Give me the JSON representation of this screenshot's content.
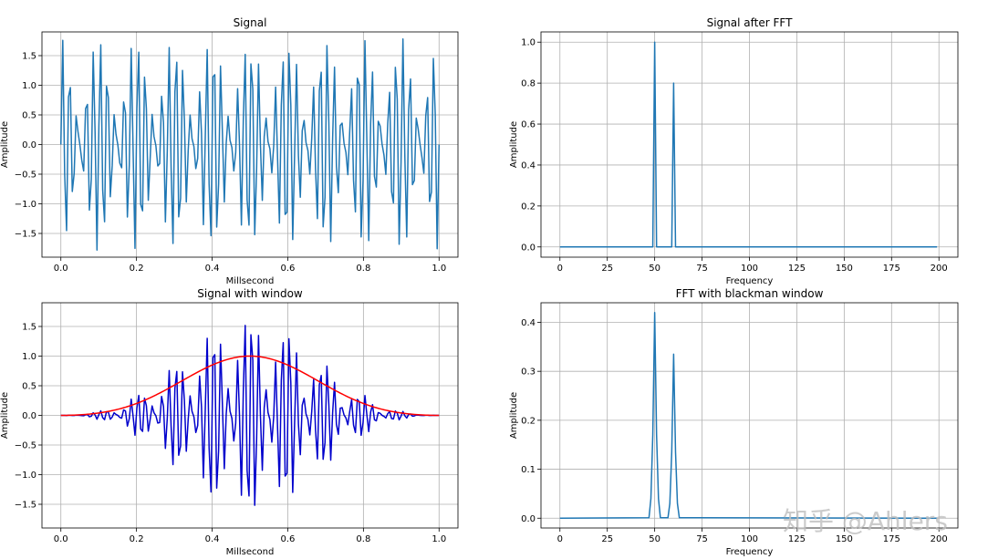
{
  "watermark": "知乎 @Ahlers",
  "chart_data": [
    {
      "id": "signal",
      "type": "line",
      "title": "Signal",
      "xlabel": "Millsecond",
      "ylabel": "Amplitude",
      "xlim": [
        -0.05,
        1.05
      ],
      "ylim": [
        -1.9,
        1.9
      ],
      "xticks": [
        0.0,
        0.2,
        0.4,
        0.6,
        0.8,
        1.0
      ],
      "xtick_labels": [
        "0.0",
        "0.2",
        "0.4",
        "0.6",
        "0.8",
        "1.0"
      ],
      "yticks": [
        -1.5,
        -1.0,
        -0.5,
        0.0,
        0.5,
        1.0,
        1.5
      ],
      "ytick_labels": [
        "−1.5",
        "−1.0",
        "−0.5",
        "0.0",
        "0.5",
        "1.0",
        "1.5"
      ],
      "grid": true,
      "series": [
        {
          "color": "#1f77b4",
          "formula": "y = sin(2*pi*50*t) + 0.8*sin(2*pi*60*t)",
          "x_range": [
            0,
            1
          ],
          "samples": 200
        }
      ]
    },
    {
      "id": "fft",
      "type": "line",
      "title": "Signal after FFT",
      "xlabel": "Frequency",
      "ylabel": "Amplitude",
      "xlim": [
        -10,
        210
      ],
      "ylim": [
        -0.05,
        1.05
      ],
      "xticks": [
        0,
        25,
        50,
        75,
        100,
        125,
        150,
        175,
        200
      ],
      "xtick_labels": [
        "0",
        "25",
        "50",
        "75",
        "100",
        "125",
        "150",
        "175",
        "200"
      ],
      "yticks": [
        0.0,
        0.2,
        0.4,
        0.6,
        0.8,
        1.0
      ],
      "ytick_labels": [
        "0.0",
        "0.2",
        "0.4",
        "0.6",
        "0.8",
        "1.0"
      ],
      "grid": true,
      "series": [
        {
          "color": "#1f77b4",
          "x": [
            0,
            49,
            50,
            51,
            59,
            60,
            61,
            199
          ],
          "y": [
            0,
            0,
            1.0,
            0,
            0,
            0.8,
            0,
            0
          ]
        }
      ]
    },
    {
      "id": "windowed",
      "type": "line",
      "title": "Signal with window",
      "xlabel": "Millsecond",
      "ylabel": "Amplitude",
      "xlim": [
        -0.05,
        1.05
      ],
      "ylim": [
        -1.9,
        1.9
      ],
      "xticks": [
        0.0,
        0.2,
        0.4,
        0.6,
        0.8,
        1.0
      ],
      "xtick_labels": [
        "0.0",
        "0.2",
        "0.4",
        "0.6",
        "0.8",
        "1.0"
      ],
      "yticks": [
        -1.5,
        -1.0,
        -0.5,
        0.0,
        0.5,
        1.0,
        1.5
      ],
      "ytick_labels": [
        "−1.5",
        "−1.0",
        "−0.5",
        "0.0",
        "0.5",
        "1.0",
        "1.5"
      ],
      "grid": true,
      "series": [
        {
          "color": "#0000cc",
          "formula": "y = (sin(2*pi*50*t) + 0.8*sin(2*pi*60*t)) * blackman(t)",
          "x_range": [
            0,
            1
          ],
          "samples": 200
        },
        {
          "color": "#ff0000",
          "formula": "blackman window: 0.42 - 0.5*cos(2*pi*t) + 0.08*cos(4*pi*t)",
          "x_range": [
            0,
            1
          ],
          "samples": 200
        }
      ]
    },
    {
      "id": "fft_window",
      "type": "line",
      "title": "FFT with blackman window",
      "xlabel": "Frequency",
      "ylabel": "Amplitude",
      "xlim": [
        -10,
        210
      ],
      "ylim": [
        -0.02,
        0.44
      ],
      "xticks": [
        0,
        25,
        50,
        75,
        100,
        125,
        150,
        175,
        200
      ],
      "xtick_labels": [
        "0",
        "25",
        "50",
        "75",
        "100",
        "125",
        "150",
        "175",
        "200"
      ],
      "yticks": [
        0.0,
        0.1,
        0.2,
        0.3,
        0.4
      ],
      "ytick_labels": [
        "0.0",
        "0.1",
        "0.2",
        "0.3",
        "0.4"
      ],
      "grid": true,
      "series": [
        {
          "color": "#1f77b4",
          "x": [
            0,
            47,
            48,
            49,
            50,
            51,
            52,
            53,
            57,
            58,
            59,
            60,
            61,
            62,
            63,
            199
          ],
          "y": [
            0,
            0.001,
            0.04,
            0.17,
            0.42,
            0.17,
            0.04,
            0.001,
            0.001,
            0.03,
            0.135,
            0.335,
            0.135,
            0.03,
            0.001,
            0
          ]
        }
      ]
    }
  ]
}
